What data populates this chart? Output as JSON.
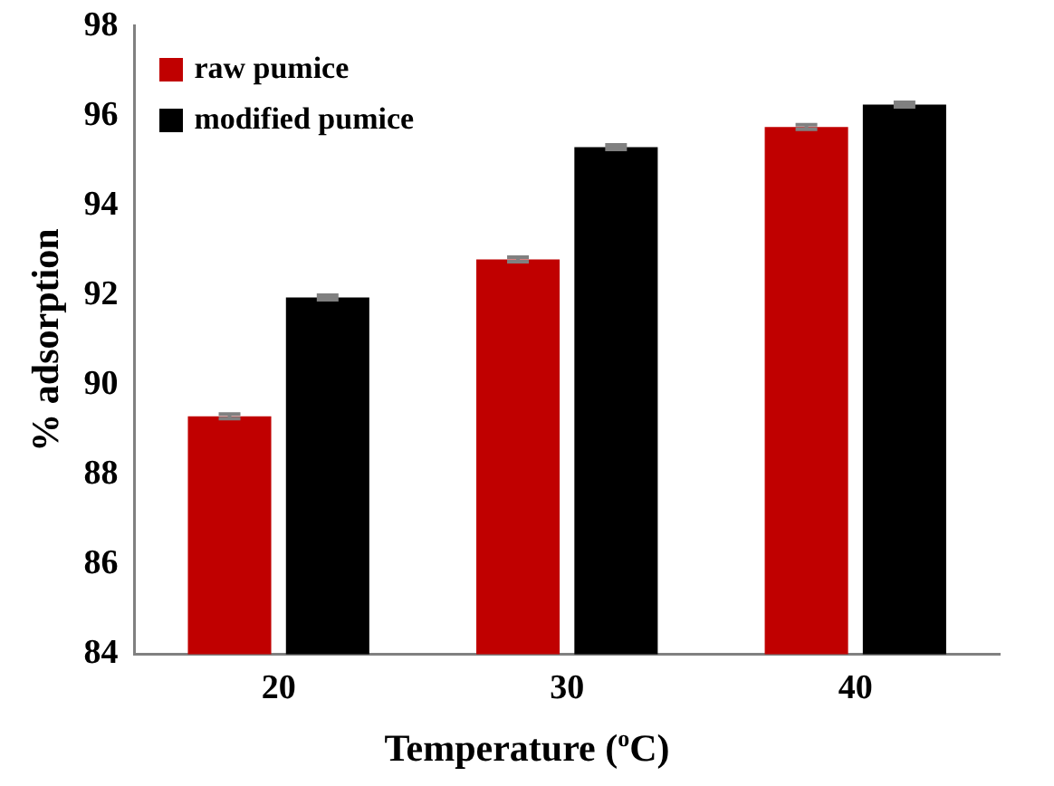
{
  "chart_data": {
    "type": "bar",
    "xlabel": "Temperature ($^{o}$C)",
    "ylabel": "% adsorption",
    "categories": [
      "20",
      "30",
      "40"
    ],
    "series": [
      {
        "name": "raw pumice",
        "color": "#c00000",
        "values": [
          89.3,
          92.8,
          95.75
        ],
        "errors": [
          0.05,
          0.05,
          0.05
        ]
      },
      {
        "name": "modified pumice",
        "color": "#000000",
        "values": [
          91.95,
          95.3,
          96.25
        ],
        "errors": [
          0.05,
          0.05,
          0.05
        ]
      }
    ],
    "ylim": [
      84,
      98
    ],
    "yticks": [
      84,
      86,
      88,
      90,
      92,
      94,
      96,
      98
    ],
    "grid": false,
    "legend": "top left"
  }
}
